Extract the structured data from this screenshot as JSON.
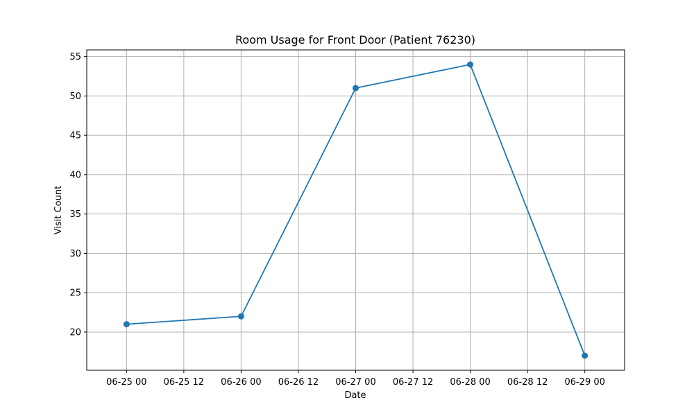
{
  "chart_data": {
    "type": "line",
    "title": "Room Usage for Front Door (Patient 76230)",
    "xlabel": "Date",
    "ylabel": "Visit Count",
    "x_ticks": [
      "06-25 00",
      "06-25 12",
      "06-26 00",
      "06-26 12",
      "06-27 00",
      "06-27 12",
      "06-28 00",
      "06-28 12",
      "06-29 00"
    ],
    "y_ticks": [
      20,
      25,
      30,
      35,
      40,
      45,
      50,
      55
    ],
    "xlim": [
      "06-24 15:40",
      "06-29 08:20"
    ],
    "ylim": [
      15.15,
      55.85
    ],
    "grid": true,
    "series": [
      {
        "color": "#1f77b4",
        "marker": "circle",
        "points": [
          {
            "x": "06-25 00",
            "y": 21
          },
          {
            "x": "06-26 00",
            "y": 22
          },
          {
            "x": "06-27 00",
            "y": 51
          },
          {
            "x": "06-28 00",
            "y": 54
          },
          {
            "x": "06-29 00",
            "y": 17
          }
        ]
      }
    ]
  }
}
